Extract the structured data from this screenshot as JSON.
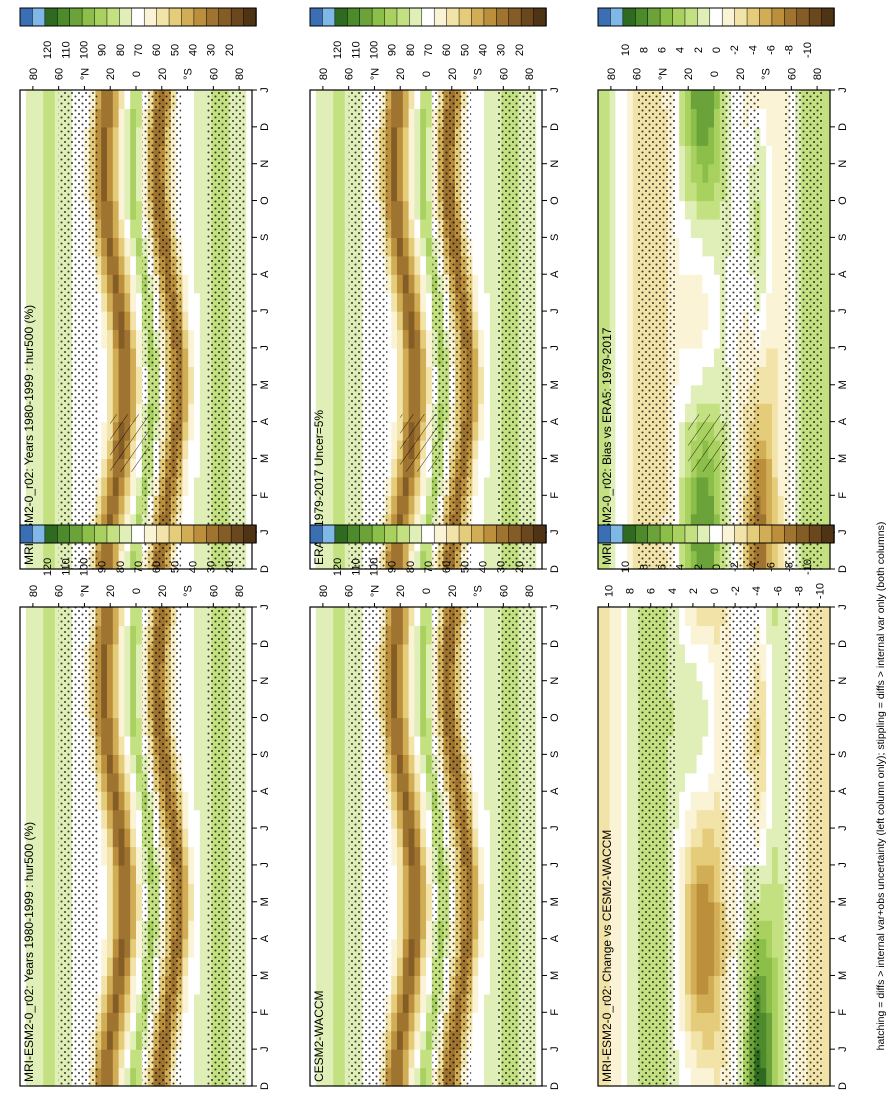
{
  "figure": {
    "footnote": "hatching = diffs > internal var+obs uncertainty (left column only); stippling = diffs > internal var only (both columns)"
  },
  "palettes": {
    "abs": [
      "#3a6fb4",
      "#7fb8e6",
      "#2e6b21",
      "#4d8a2c",
      "#6ba239",
      "#8cbf4a",
      "#a8d160",
      "#c4e182",
      "#e0efb8",
      "#ffffff",
      "#fbf3d6",
      "#f2e3a8",
      "#e5cc7a",
      "#d1ad55",
      "#bb8f3c",
      "#9f7330",
      "#845c26",
      "#6a471d",
      "#4e3315"
    ],
    "diff": [
      "#3a6fb4",
      "#7fb8e6",
      "#2e6b21",
      "#4d8a2c",
      "#6ba239",
      "#8cbf4a",
      "#a8d160",
      "#c4e182",
      "#e0efb8",
      "#ffffff",
      "#fbf3d6",
      "#f2e3a8",
      "#e5cc7a",
      "#d1ad55",
      "#bb8f3c",
      "#9f7330",
      "#845c26",
      "#6a471d",
      "#4e3315"
    ]
  },
  "chart_data": [
    {
      "type": "heatmap",
      "title": "MRI-ESM2-0_r02: Years 1980-1999 : hur500 (%)",
      "kind": "abs",
      "x": [
        "D",
        "J",
        "F",
        "M",
        "A",
        "M",
        "J",
        "J",
        "A",
        "S",
        "O",
        "N",
        "D",
        "J"
      ],
      "y_ticks": [
        "80",
        "60",
        "°N",
        "20",
        "0",
        "20",
        "°S",
        "60",
        "80"
      ],
      "y_range": [
        -90,
        90
      ],
      "colorbar": {
        "ticks": [
          "120",
          "110",
          "100",
          "90",
          "80",
          "70",
          "60",
          "50",
          "40",
          "30",
          "20"
        ],
        "range": [
          15,
          125
        ]
      },
      "stippling": true,
      "hatching": true
    },
    {
      "type": "heatmap",
      "title": "ERA5: 1979-2017 Uncer=5%",
      "kind": "abs",
      "x": [
        "D",
        "J",
        "F",
        "M",
        "A",
        "M",
        "J",
        "J",
        "A",
        "S",
        "O",
        "N",
        "D",
        "J"
      ],
      "y_ticks": [
        "80",
        "60",
        "°N",
        "20",
        "0",
        "20",
        "°S",
        "60",
        "80"
      ],
      "y_range": [
        -90,
        90
      ],
      "colorbar": {
        "ticks": [
          "120",
          "110",
          "100",
          "90",
          "80",
          "70",
          "60",
          "50",
          "40",
          "30",
          "20"
        ],
        "range": [
          15,
          125
        ]
      },
      "stippling": true,
      "hatching": true
    },
    {
      "type": "heatmap",
      "title": "MRI-ESM2-0_r02: Bias vs ERA5: 1979-2017",
      "kind": "diff",
      "x": [
        "D",
        "J",
        "F",
        "M",
        "A",
        "M",
        "J",
        "J",
        "A",
        "S",
        "O",
        "N",
        "D",
        "J"
      ],
      "y_ticks": [
        "80",
        "60",
        "°N",
        "20",
        "0",
        "20",
        "°S",
        "60",
        "80"
      ],
      "y_range": [
        -90,
        90
      ],
      "colorbar": {
        "ticks": [
          "10",
          "8",
          "6",
          "4",
          "2",
          "0",
          "-2",
          "-4",
          "-6",
          "-8",
          "-10"
        ],
        "range": [
          -12,
          12
        ]
      },
      "stippling": true,
      "hatching": true
    },
    {
      "type": "heatmap",
      "title": "MRI-ESM2-0_r02: Years 1980-1999 : hur500 (%)",
      "kind": "abs",
      "x": [
        "D",
        "J",
        "F",
        "M",
        "A",
        "M",
        "J",
        "J",
        "A",
        "S",
        "O",
        "N",
        "D",
        "J"
      ],
      "y_ticks": [
        "80",
        "60",
        "°N",
        "20",
        "0",
        "20",
        "°S",
        "60",
        "80"
      ],
      "y_range": [
        -90,
        90
      ],
      "colorbar": {
        "ticks": [
          "120",
          "110",
          "100",
          "90",
          "80",
          "70",
          "60",
          "50",
          "40",
          "30",
          "20"
        ],
        "range": [
          15,
          125
        ]
      },
      "stippling": true,
      "hatching": false
    },
    {
      "type": "heatmap",
      "title": "CESM2-WACCM",
      "kind": "abs",
      "x": [
        "D",
        "J",
        "F",
        "M",
        "A",
        "M",
        "J",
        "J",
        "A",
        "S",
        "O",
        "N",
        "D",
        "J"
      ],
      "y_ticks": [
        "80",
        "60",
        "°N",
        "20",
        "0",
        "20",
        "°S",
        "60",
        "80"
      ],
      "y_range": [
        -90,
        90
      ],
      "colorbar": {
        "ticks": [
          "120",
          "110",
          "100",
          "90",
          "80",
          "70",
          "60",
          "50",
          "40",
          "30",
          "20"
        ],
        "range": [
          15,
          125
        ]
      },
      "stippling": true,
      "hatching": false
    },
    {
      "type": "heatmap",
      "title": "MRI-ESM2-0_r02: Change vs CESM2-WACCM",
      "kind": "diff",
      "x": [
        "D",
        "J",
        "F",
        "M",
        "A",
        "M",
        "J",
        "J",
        "A",
        "S",
        "O",
        "N",
        "D",
        "J"
      ],
      "y_ticks": [
        "10",
        "8",
        "6",
        "4",
        "2",
        "0",
        "-2",
        "-4",
        "-6",
        "-8",
        "-10"
      ],
      "y_range": [
        -90,
        90
      ],
      "colorbar": {
        "ticks": [
          "10",
          "8",
          "6",
          "4",
          "2",
          "0",
          "-2",
          "-4",
          "-6",
          "-8",
          "-10"
        ],
        "range": [
          -12,
          12
        ]
      },
      "stippling": true,
      "hatching": false
    }
  ]
}
